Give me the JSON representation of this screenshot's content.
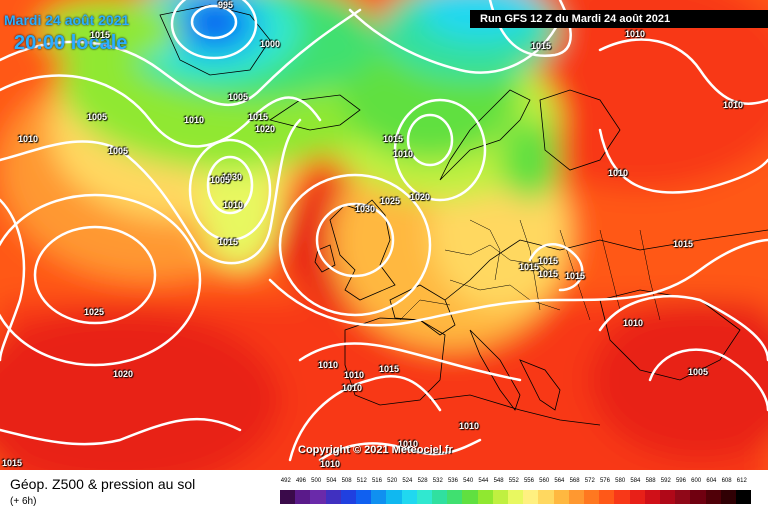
{
  "header": {
    "date": "Mardi 24 août 2021",
    "time": "20:00 locale",
    "run": "Run GFS 12 Z du Mardi 24 août 2021"
  },
  "copyright": "Copyright © 2021 Meteociel.fr",
  "footer": {
    "title": "Géop. Z500 & pression au sol",
    "subtitle": "(+ 6h)"
  },
  "pressure_labels": [
    "995",
    "1000",
    "1015",
    "1015",
    "1005",
    "1010",
    "1010",
    "1005",
    "1005",
    "1030",
    "1010",
    "1015",
    "1020",
    "1015",
    "1010",
    "1005",
    "1025",
    "1020",
    "1030",
    "1015",
    "1010",
    "1010",
    "1025",
    "1020",
    "1010",
    "1015",
    "1015",
    "1015",
    "1015",
    "1015",
    "1010",
    "1005",
    "1010",
    "1010",
    "1015",
    "1010",
    "1010",
    "1010",
    "1010",
    "1015"
  ],
  "scale_values": [
    "492",
    "496",
    "500",
    "504",
    "508",
    "512",
    "516",
    "520",
    "524",
    "528",
    "532",
    "536",
    "540",
    "544",
    "548",
    "552",
    "556",
    "560",
    "564",
    "568",
    "572",
    "576",
    "580",
    "584",
    "588",
    "592",
    "596",
    "600",
    "604",
    "608",
    "612"
  ],
  "scale_colors": [
    "#3a0a4a",
    "#5a1a8a",
    "#6a2aaa",
    "#4030c0",
    "#2040e0",
    "#1060f0",
    "#1090f0",
    "#10b8f0",
    "#20d8f0",
    "#30e8d0",
    "#30e0a0",
    "#40e070",
    "#60e040",
    "#90e830",
    "#c0f040",
    "#e8f860",
    "#fff080",
    "#ffd860",
    "#ffb840",
    "#ff9830",
    "#ff7820",
    "#ff5818",
    "#f83818",
    "#e82018",
    "#d01018",
    "#b00818",
    "#900818",
    "#700010",
    "#500008",
    "#300004",
    "#000000"
  ]
}
